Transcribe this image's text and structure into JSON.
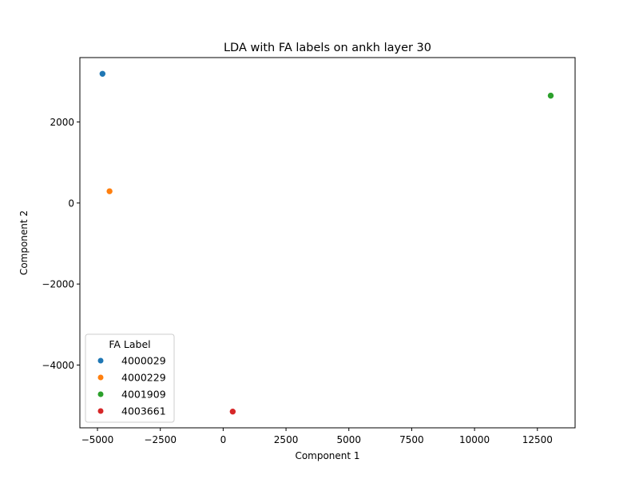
{
  "chart_data": {
    "type": "scatter",
    "title": "LDA with FA labels on ankh layer 30",
    "xlabel": "Component 1",
    "ylabel": "Component 2",
    "xlim": [
      -5700,
      14000
    ],
    "ylim": [
      -5550,
      3590
    ],
    "xticks": [
      -5000,
      -2500,
      0,
      2500,
      5000,
      7500,
      10000,
      12500
    ],
    "xtick_labels": [
      "−5000",
      "−2500",
      "0",
      "2500",
      "5000",
      "7500",
      "10000",
      "12500"
    ],
    "yticks": [
      -4000,
      -2000,
      0,
      2000
    ],
    "ytick_labels": [
      "−4000",
      "−2000",
      "0",
      "2000"
    ],
    "grid": false,
    "legend": {
      "title": "FA Label",
      "placement": "lower-left"
    },
    "series": [
      {
        "name": "4000029",
        "color": "#1f77b4",
        "points": [
          {
            "x": -4800,
            "y": 3190
          }
        ]
      },
      {
        "name": "4000229",
        "color": "#ff7f0e",
        "points": [
          {
            "x": -4520,
            "y": 290
          }
        ]
      },
      {
        "name": "4001909",
        "color": "#2ca02c",
        "points": [
          {
            "x": 13030,
            "y": 2650
          }
        ]
      },
      {
        "name": "4003661",
        "color": "#d62728",
        "points": [
          {
            "x": 380,
            "y": -5150
          }
        ]
      }
    ]
  }
}
